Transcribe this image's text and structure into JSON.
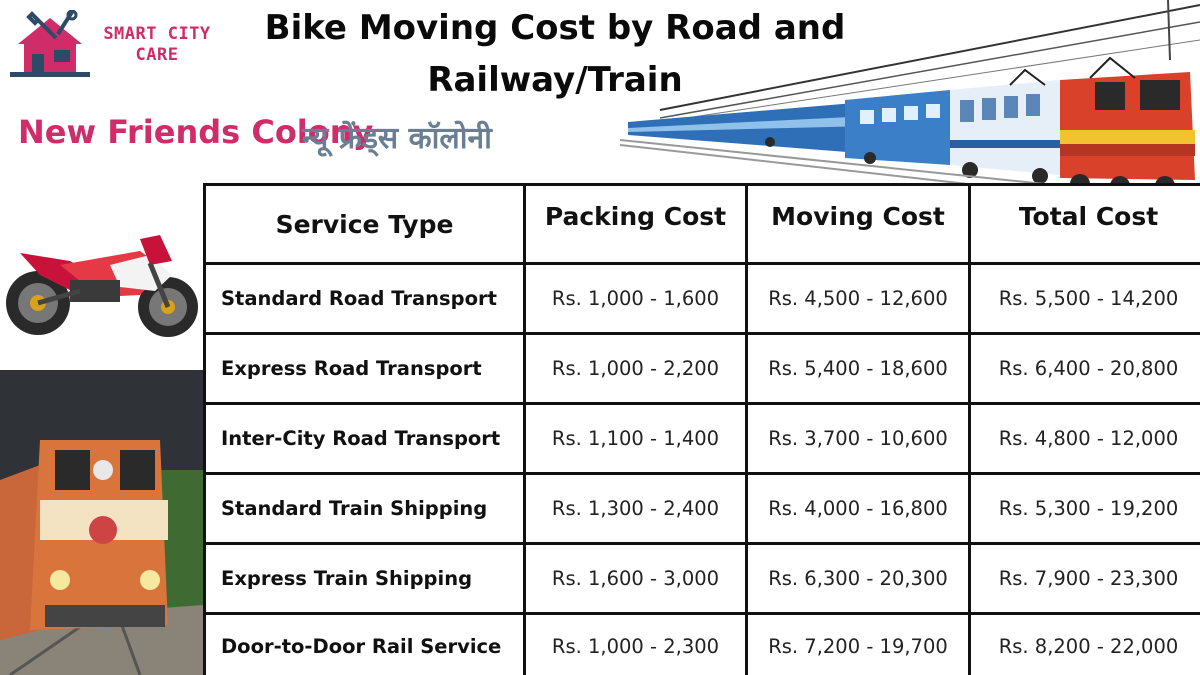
{
  "logo": {
    "line1": "SMART CITY",
    "line2": "CARE",
    "icon": "house-wrench-icon"
  },
  "title": {
    "line1": "Bike Moving Cost by Road and",
    "line2": "Railway/Train"
  },
  "location": {
    "english": "New Friends Colony",
    "hindi": "न्यू फ्रेंड्स कॉलोनी"
  },
  "colors": {
    "brand": "#d02c6a",
    "hindi_text": "#6a7f93",
    "table_border": "#111111"
  },
  "images": {
    "train_top": "electric-train-icon",
    "bike": "motorbike-icon",
    "loco": "locomotive-photo"
  },
  "table": {
    "headers": [
      "Service Type",
      "Packing Cost",
      "Moving Cost",
      "Total Cost"
    ],
    "rows": [
      {
        "service": "Standard Road Transport",
        "packing": "Rs. 1,000 - 1,600",
        "moving": "Rs. 4,500 - 12,600",
        "total": "Rs. 5,500 - 14,200"
      },
      {
        "service": "Express Road Transport",
        "packing": "Rs. 1,000 - 2,200",
        "moving": "Rs. 5,400 - 18,600",
        "total": "Rs. 6,400 - 20,800"
      },
      {
        "service": "Inter-City Road Transport",
        "packing": "Rs. 1,100 - 1,400",
        "moving": "Rs. 3,700 - 10,600",
        "total": "Rs. 4,800 - 12,000"
      },
      {
        "service": "Standard Train Shipping",
        "packing": "Rs. 1,300 - 2,400",
        "moving": "Rs. 4,000 - 16,800",
        "total": "Rs. 5,300 - 19,200"
      },
      {
        "service": "Express Train Shipping",
        "packing": "Rs. 1,600 - 3,000",
        "moving": "Rs. 6,300 - 20,300",
        "total": "Rs. 7,900 - 23,300"
      },
      {
        "service": "Door-to-Door Rail Service",
        "packing": "Rs. 1,000 - 2,300",
        "moving": "Rs. 7,200 - 19,700",
        "total": "Rs. 8,200 - 22,000"
      }
    ]
  }
}
